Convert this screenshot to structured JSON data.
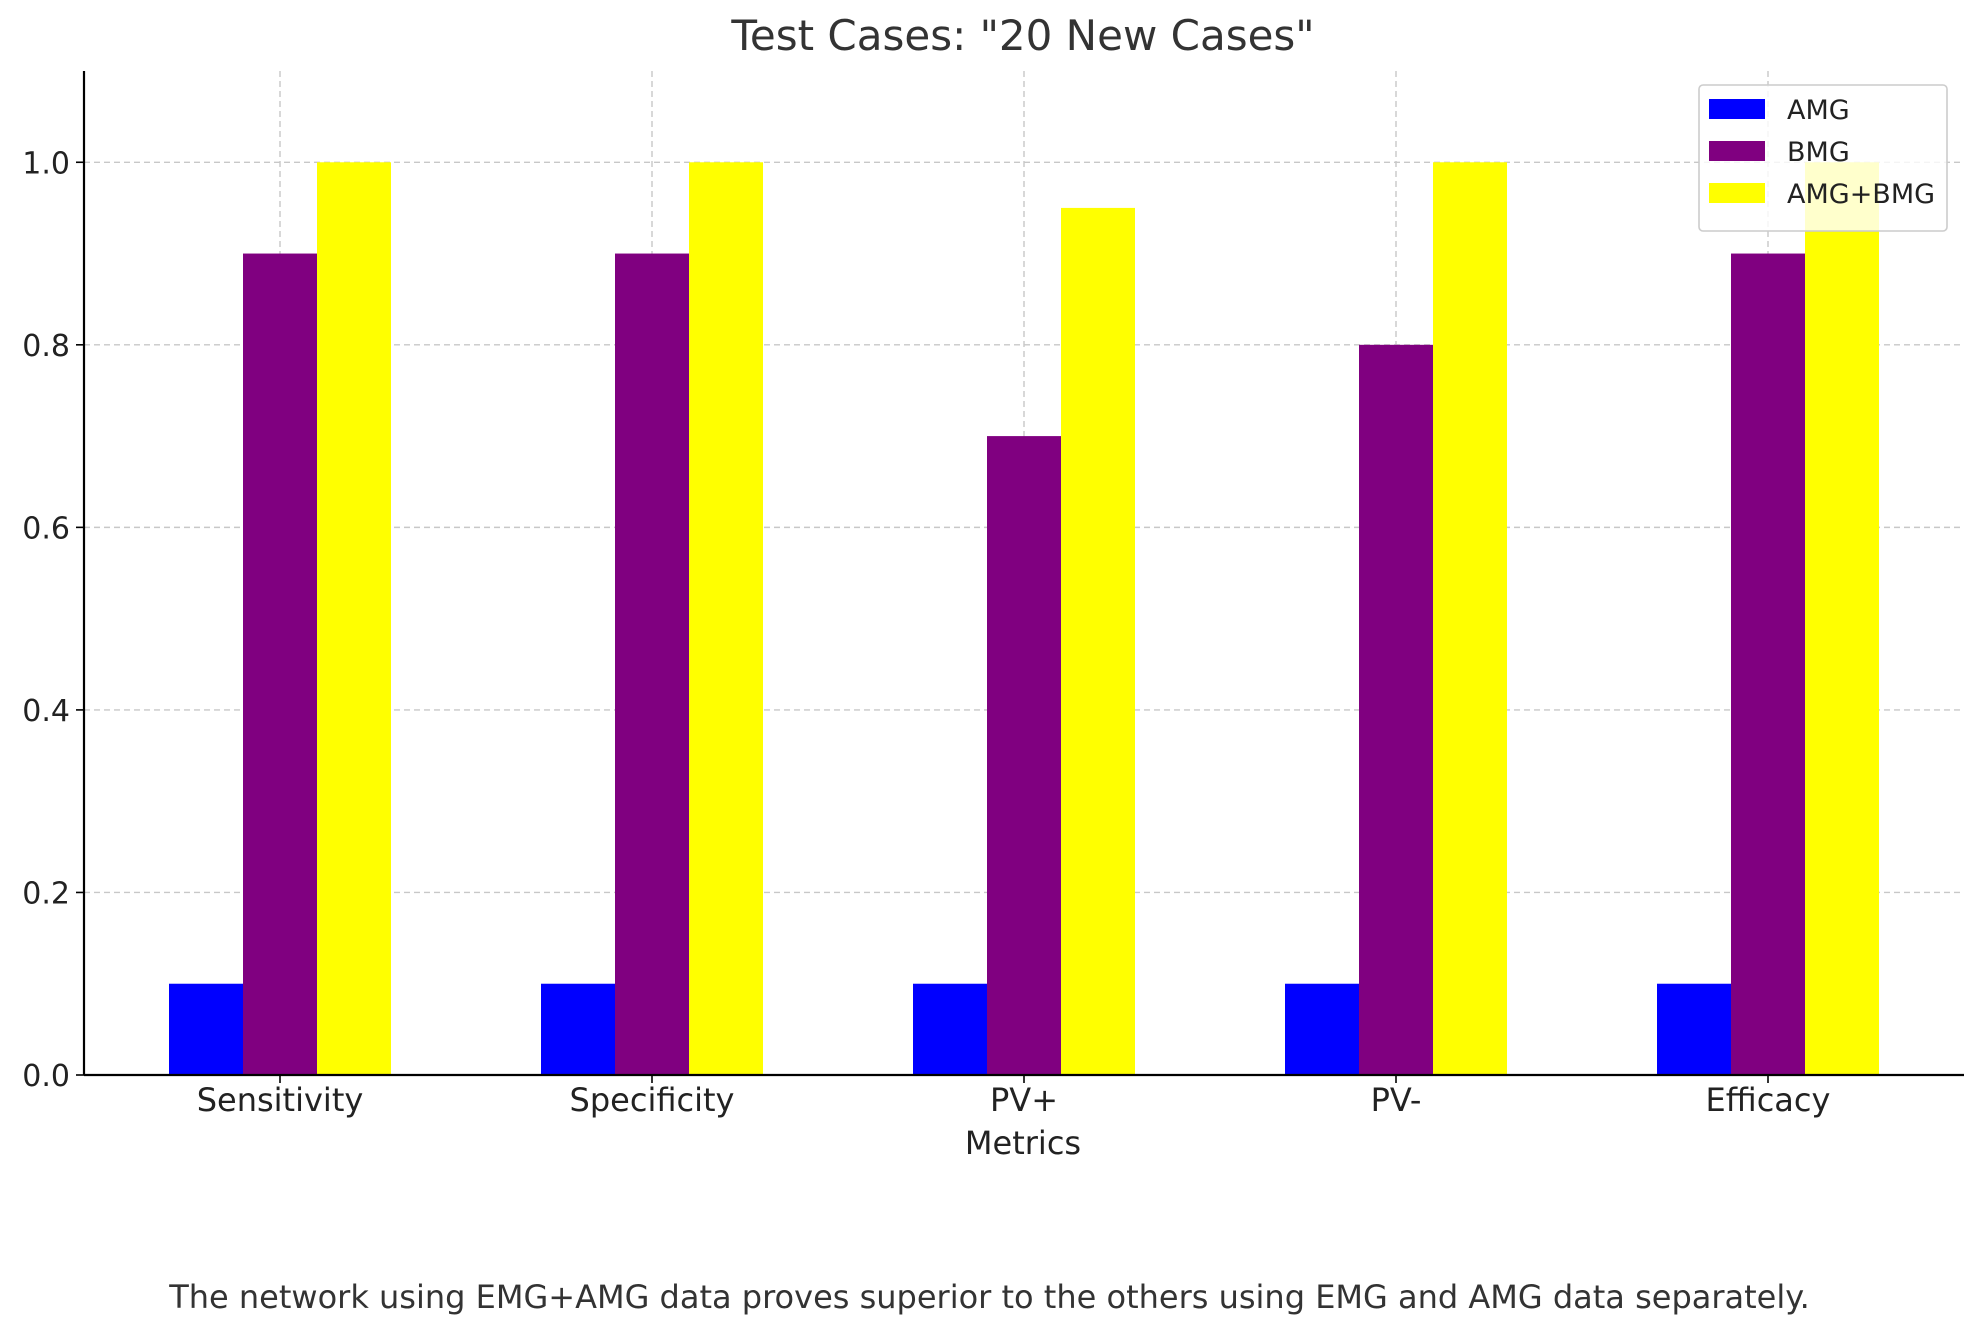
{
  "chart_data": {
    "type": "bar",
    "title": "Test Cases: \"20 New Cases\"",
    "xlabel": "Metrics",
    "ylabel": "",
    "categories": [
      "Sensitivity",
      "Specificity",
      "PV+",
      "PV-",
      "Efficacy"
    ],
    "series": [
      {
        "name": "AMG",
        "color": "#0000ff",
        "values": [
          0.1,
          0.1,
          0.1,
          0.1,
          0.1
        ]
      },
      {
        "name": "BMG",
        "color": "#800080",
        "values": [
          0.9,
          0.9,
          0.7,
          0.8,
          0.9
        ]
      },
      {
        "name": "AMG+BMG",
        "color": "#ffff00",
        "values": [
          1.0,
          1.0,
          0.95,
          1.0,
          1.0
        ]
      }
    ],
    "ylim": [
      0,
      1.1
    ],
    "yticks": [
      "0.0",
      "0.2",
      "0.4",
      "0.6",
      "0.8",
      "1.0"
    ],
    "grid": true,
    "legend_position": "top-right"
  },
  "caption": "The network using EMG+AMG data proves superior to the others using EMG and AMG data separately."
}
